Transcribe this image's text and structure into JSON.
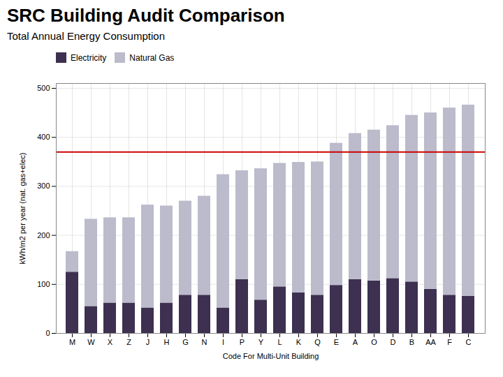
{
  "chart_data": {
    "type": "bar",
    "title": "SRC Building Audit Comparison",
    "subtitle": "Total Annual Energy Consumption",
    "xlabel": "Code For Multi-Unit Building",
    "ylabel": "kWh/m2 per year (nat. gas+elec)",
    "categories": [
      "M",
      "W",
      "X",
      "Z",
      "J",
      "H",
      "G",
      "N",
      "I",
      "P",
      "Y",
      "L",
      "K",
      "Q",
      "E",
      "A",
      "O",
      "D",
      "B",
      "AA",
      "F",
      "C"
    ],
    "series": [
      {
        "name": "Electricity",
        "color": "#3d3050",
        "values": [
          125,
          55,
          62,
          62,
          52,
          62,
          78,
          78,
          52,
          110,
          68,
          95,
          83,
          78,
          98,
          110,
          107,
          112,
          105,
          90,
          78,
          76
        ]
      },
      {
        "name": "Natural Gas",
        "color": "#bbbbcc",
        "values": [
          42,
          178,
          174,
          174,
          210,
          198,
          192,
          202,
          272,
          222,
          268,
          252,
          266,
          272,
          290,
          298,
          308,
          312,
          340,
          360,
          382,
          390
        ]
      }
    ],
    "stacked": true,
    "reference_lines": [
      {
        "value": 370,
        "color": "#cc0000"
      }
    ],
    "ylim": [
      0,
      510
    ],
    "yticks": [
      0,
      100,
      200,
      300,
      400,
      500
    ],
    "grid": true,
    "legend": "upper left"
  }
}
